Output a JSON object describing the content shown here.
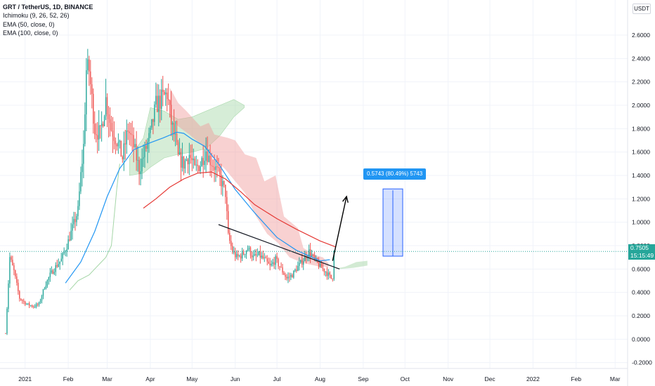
{
  "header": {
    "title": "GRT / TetherUS, 1D, BINANCE",
    "indicators": [
      "Ichimoku (9, 26, 52, 26)",
      "EMA (50, close, 0)",
      "EMA (100, close, 0)"
    ]
  },
  "unit_button": "USDT",
  "price_tag": {
    "price": "0.7505",
    "countdown": "15:15:49",
    "color": "#26a69a"
  },
  "measure": {
    "label": "0.5743 (80.49%) 5743",
    "from": 0.71,
    "to": 1.285
  },
  "colors": {
    "up": "#26a69a",
    "down": "#ef5350",
    "ema50": "#2196f3",
    "ema100": "#e53935",
    "cloud_bull": "#a5d6a7",
    "cloud_bear": "#ef9a9a",
    "measure": "#2962ff"
  },
  "chart_data": {
    "type": "candlestick",
    "title": "GRT / TetherUS, 1D, BINANCE",
    "y_ticks": [
      "2.6000",
      "2.4000",
      "2.2000",
      "2.0000",
      "1.8000",
      "1.6000",
      "1.4000",
      "1.2000",
      "1.0000",
      "0.8000",
      "0.6000",
      "0.4000",
      "0.2000",
      "0.0000",
      "-0.2000"
    ],
    "y_tick_values": [
      2.6,
      2.4,
      2.2,
      2.0,
      1.8,
      1.6,
      1.4,
      1.2,
      1.0,
      0.8,
      0.6,
      0.4,
      0.2,
      0.0,
      -0.2
    ],
    "ylim": [
      -0.25,
      2.9
    ],
    "x_ticks": [
      "2021",
      "Feb",
      "Mar",
      "Apr",
      "May",
      "Jun",
      "Jul",
      "Aug",
      "Sep",
      "Oct",
      "Nov",
      "Dec",
      "2022",
      "Feb",
      "Mar"
    ],
    "x_tick_dates": [
      "2021-01-01",
      "2021-02-01",
      "2021-03-01",
      "2021-04-01",
      "2021-05-01",
      "2021-06-01",
      "2021-07-01",
      "2021-08-01",
      "2021-09-01",
      "2021-10-01",
      "2021-11-01",
      "2021-12-01",
      "2022-01-01",
      "2022-02-01",
      "2022-03-01"
    ],
    "series": [
      {
        "name": "EMA (50, close, 0)",
        "points": [
          [
            "2021-01-30",
            0.48
          ],
          [
            "2021-02-10",
            0.66
          ],
          [
            "2021-02-20",
            0.92
          ],
          [
            "2021-03-01",
            1.22
          ],
          [
            "2021-03-10",
            1.46
          ],
          [
            "2021-03-20",
            1.62
          ],
          [
            "2021-04-01",
            1.68
          ],
          [
            "2021-04-10",
            1.72
          ],
          [
            "2021-04-20",
            1.77
          ],
          [
            "2021-04-25",
            1.76
          ],
          [
            "2021-05-01",
            1.71
          ],
          [
            "2021-05-10",
            1.65
          ],
          [
            "2021-05-20",
            1.5
          ],
          [
            "2021-06-01",
            1.28
          ],
          [
            "2021-06-15",
            1.08
          ],
          [
            "2021-07-01",
            0.87
          ],
          [
            "2021-07-15",
            0.76
          ],
          [
            "2021-08-01",
            0.67
          ],
          [
            "2021-08-08",
            0.68
          ]
        ]
      },
      {
        "name": "EMA (100, close, 0)",
        "points": [
          [
            "2021-03-27",
            1.12
          ],
          [
            "2021-04-05",
            1.2
          ],
          [
            "2021-04-15",
            1.3
          ],
          [
            "2021-04-25",
            1.37
          ],
          [
            "2021-05-05",
            1.42
          ],
          [
            "2021-05-15",
            1.43
          ],
          [
            "2021-05-25",
            1.37
          ],
          [
            "2021-06-05",
            1.26
          ],
          [
            "2021-06-15",
            1.15
          ],
          [
            "2021-07-01",
            1.03
          ],
          [
            "2021-07-15",
            0.94
          ],
          [
            "2021-08-01",
            0.84
          ],
          [
            "2021-08-12",
            0.79
          ]
        ]
      }
    ],
    "annotations": [
      {
        "type": "trendline",
        "from": [
          "2021-05-20",
          0.98
        ],
        "to": [
          "2021-08-15",
          0.6
        ]
      },
      {
        "type": "arrow",
        "from": [
          "2021-08-10",
          0.67
        ],
        "to": [
          "2021-08-20",
          1.22
        ]
      }
    ]
  }
}
